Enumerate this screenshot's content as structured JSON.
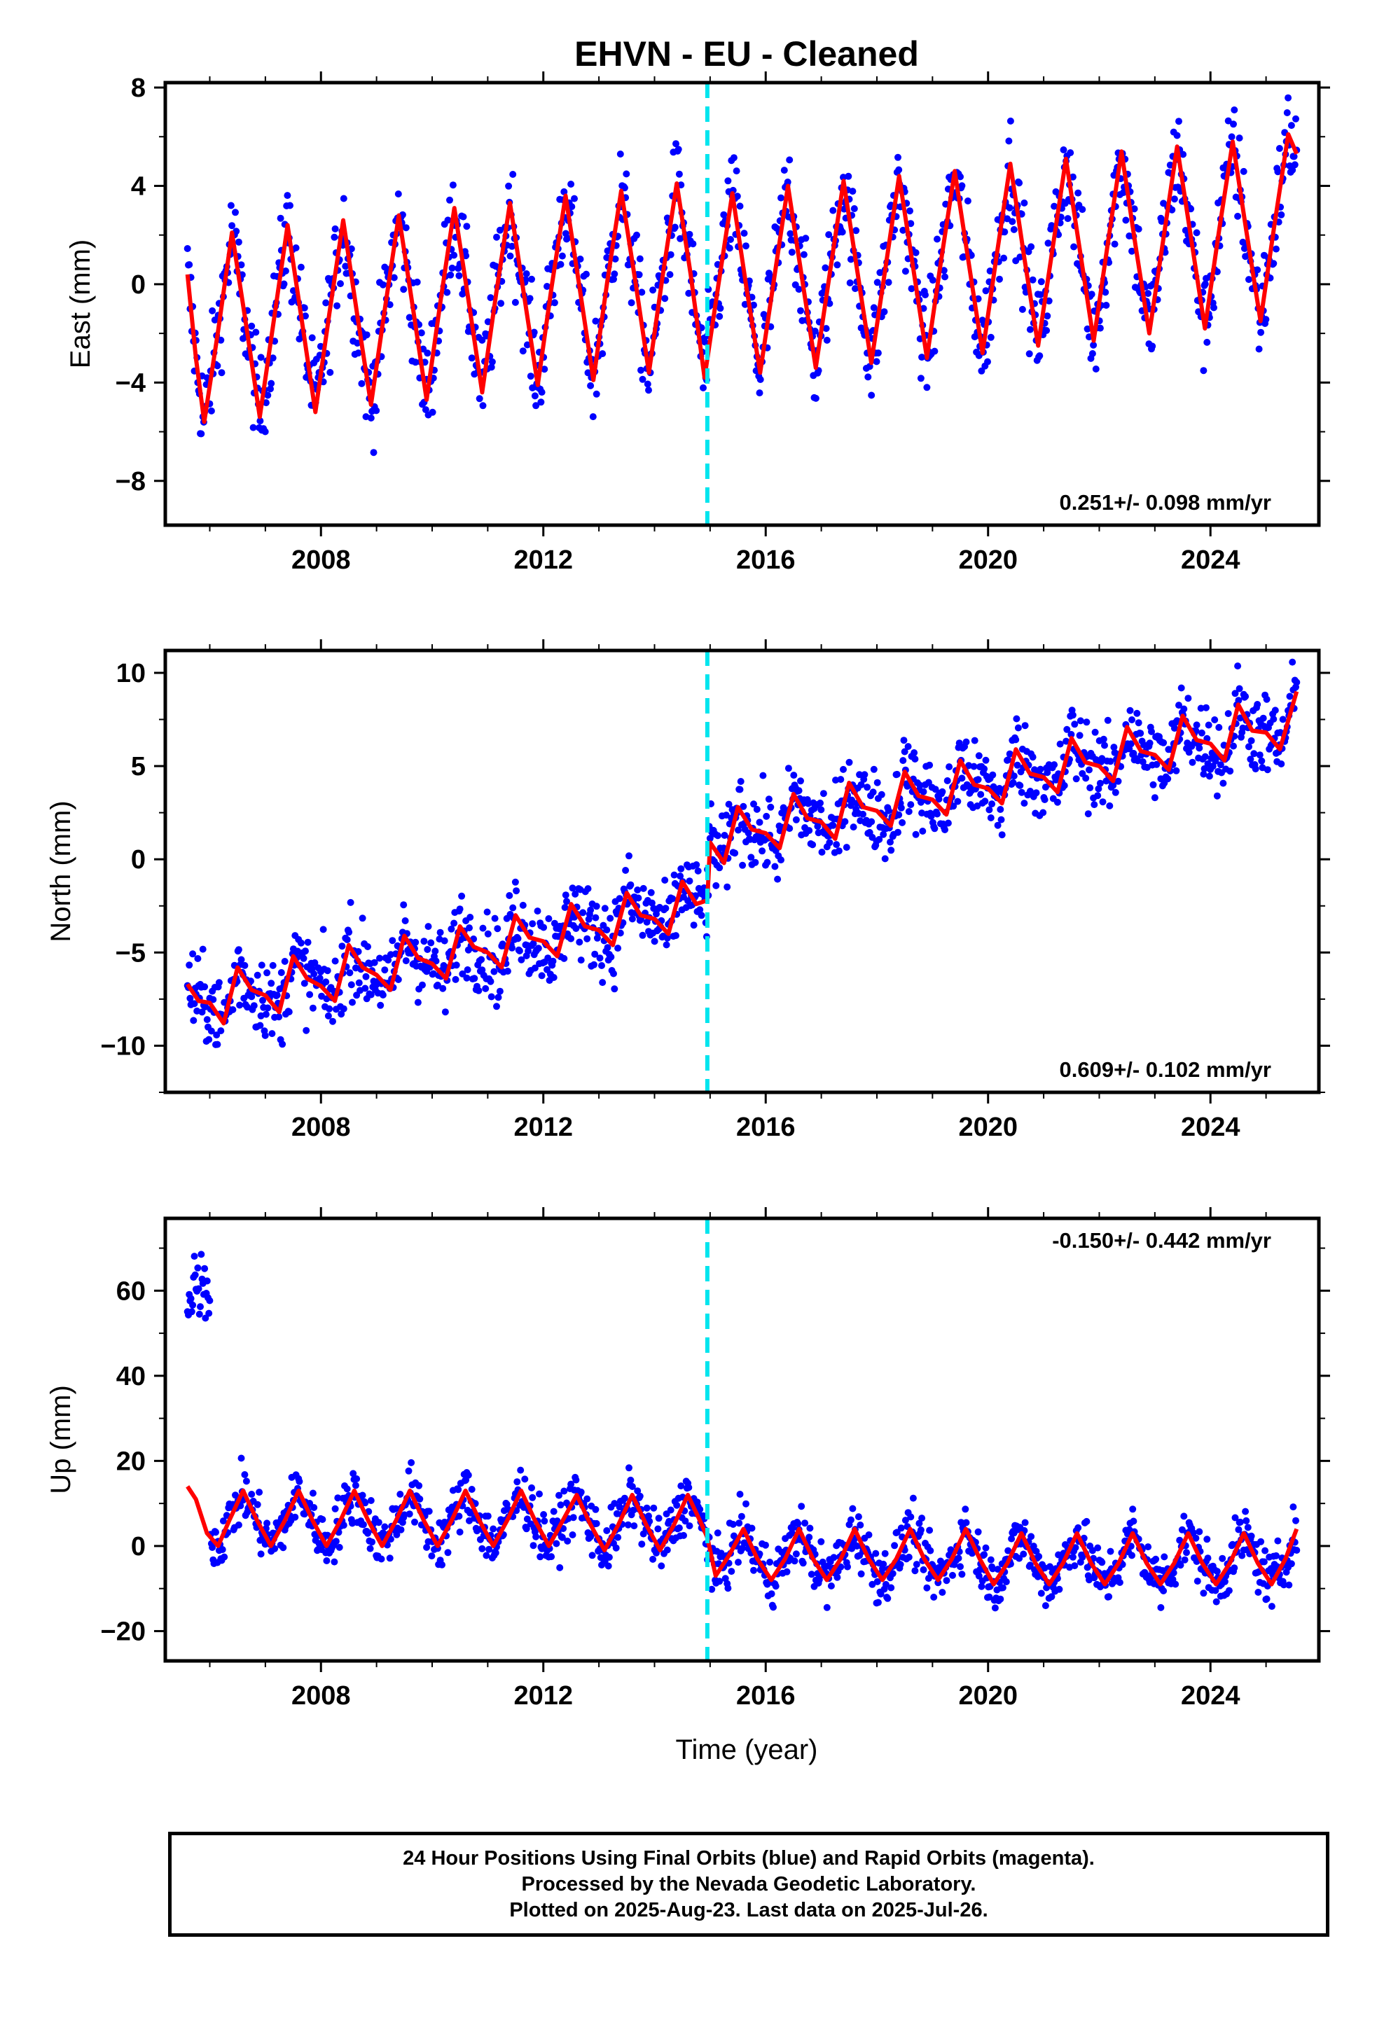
{
  "chart_data": {
    "title": "EHVN  - EU - Cleaned",
    "xlabel": "Time (year)",
    "type": "scatter",
    "x_ticks": [
      2008,
      2012,
      2016,
      2020,
      2024
    ],
    "xlim": [
      2005.2,
      2025.95
    ],
    "break_year": 2014.95,
    "colors": {
      "points": "#0000ff",
      "model": "#ff0000",
      "break": "#00e5ee",
      "frame": "#000000"
    },
    "panels": [
      {
        "ylabel": "East (mm)",
        "ylim": [
          -9.8,
          8.2
        ],
        "y_ticks": [
          8,
          4,
          0,
          -4,
          -8
        ],
        "y_tick_labels": [
          "8",
          "4",
          "0",
          "−4",
          "−8"
        ],
        "rate_label": "0.251+/- 0.098 mm/yr",
        "rate_position": "bottom-right",
        "series": [
          {
            "type": "line",
            "x": [
              2005.6,
              2005.75,
              2005.9,
              2006.15,
              2006.4,
              2006.65,
              2006.9,
              2007.15,
              2007.4,
              2007.65,
              2007.9,
              2008.15,
              2008.4,
              2008.65,
              2008.9,
              2009.15,
              2009.4,
              2009.65,
              2009.9,
              2010.15,
              2010.4,
              2010.65,
              2010.9,
              2011.15,
              2011.4,
              2011.65,
              2011.9,
              2012.15,
              2012.4,
              2012.65,
              2012.9,
              2013.15,
              2013.4,
              2013.65,
              2013.9,
              2014.15,
              2014.4,
              2014.65,
              2014.9,
              2015.15,
              2015.4,
              2015.65,
              2015.9,
              2016.15,
              2016.4,
              2016.65,
              2016.9,
              2017.15,
              2017.4,
              2017.65,
              2017.9,
              2018.15,
              2018.4,
              2018.65,
              2018.9,
              2019.15,
              2019.4,
              2019.65,
              2019.9,
              2020.15,
              2020.4,
              2020.65,
              2020.9,
              2021.15,
              2021.4,
              2021.65,
              2021.9,
              2022.15,
              2022.4,
              2022.65,
              2022.9,
              2023.15,
              2023.4,
              2023.65,
              2023.9,
              2024.15,
              2024.4,
              2024.65,
              2024.9,
              2025.15,
              2025.4,
              2025.55
            ],
            "y": [
              0.4,
              -3.0,
              -5.6,
              -1.9,
              2.1,
              -1.6,
              -5.4,
              -1.5,
              2.4,
              -1.4,
              -5.2,
              -1.2,
              2.6,
              -1.2,
              -4.9,
              -1.0,
              2.8,
              -0.9,
              -4.7,
              -0.7,
              3.1,
              -0.6,
              -4.4,
              -0.4,
              3.3,
              -0.4,
              -4.1,
              -0.1,
              3.6,
              -0.1,
              -3.9,
              0.1,
              3.8,
              0.2,
              -3.6,
              0.4,
              4.1,
              0.4,
              -3.8,
              0.0,
              3.7,
              -0.1,
              -3.6,
              0.2,
              4.0,
              0.3,
              -3.4,
              0.4,
              4.2,
              0.5,
              -3.2,
              0.6,
              4.4,
              0.7,
              -3.0,
              0.9,
              4.6,
              0.9,
              -2.8,
              1.1,
              4.9,
              1.1,
              -2.5,
              1.3,
              5.1,
              1.4,
              -2.3,
              1.6,
              5.4,
              1.6,
              -2.0,
              1.8,
              5.6,
              1.9,
              -1.8,
              2.1,
              5.8,
              2.1,
              -1.5,
              2.4,
              6.1,
              5.3
            ]
          }
        ]
      },
      {
        "ylabel": "North (mm)",
        "ylim": [
          -12.5,
          11.2
        ],
        "y_ticks": [
          10,
          5,
          0,
          -5,
          -10
        ],
        "y_tick_labels": [
          "10",
          "5",
          "0",
          "−5",
          "−10"
        ],
        "rate_label": "0.609+/- 0.102 mm/yr",
        "rate_position": "bottom-right",
        "series": [
          {
            "type": "line",
            "x": [
              2005.6,
              2005.8,
              2006.0,
              2006.25,
              2006.5,
              2006.75,
              2007.0,
              2007.25,
              2007.5,
              2007.75,
              2008.0,
              2008.25,
              2008.5,
              2008.75,
              2009.0,
              2009.25,
              2009.5,
              2009.75,
              2010.0,
              2010.25,
              2010.5,
              2010.75,
              2011.0,
              2011.25,
              2011.5,
              2011.75,
              2012.0,
              2012.25,
              2012.5,
              2012.75,
              2013.0,
              2013.25,
              2013.5,
              2013.75,
              2014.0,
              2014.25,
              2014.5,
              2014.75,
              2014.95,
              2015.0,
              2015.25,
              2015.5,
              2015.75,
              2016.0,
              2016.25,
              2016.5,
              2016.75,
              2017.0,
              2017.25,
              2017.5,
              2017.75,
              2018.0,
              2018.25,
              2018.5,
              2018.75,
              2019.0,
              2019.25,
              2019.5,
              2019.75,
              2020.0,
              2020.25,
              2020.5,
              2020.75,
              2021.0,
              2021.25,
              2021.5,
              2021.75,
              2022.0,
              2022.25,
              2022.5,
              2022.75,
              2023.0,
              2023.25,
              2023.5,
              2023.75,
              2024.0,
              2024.25,
              2024.5,
              2024.75,
              2025.0,
              2025.25,
              2025.55
            ],
            "y": [
              -6.7,
              -7.6,
              -7.7,
              -8.8,
              -5.8,
              -7.0,
              -7.3,
              -8.2,
              -5.2,
              -6.4,
              -6.8,
              -7.6,
              -4.6,
              -5.8,
              -6.2,
              -7.0,
              -4.1,
              -5.3,
              -5.6,
              -6.4,
              -3.6,
              -4.7,
              -5.0,
              -5.8,
              -3.0,
              -4.2,
              -4.4,
              -5.2,
              -2.4,
              -3.6,
              -3.8,
              -4.6,
              -1.8,
              -3.0,
              -3.2,
              -4.0,
              -1.2,
              -2.4,
              -2.2,
              0.9,
              -0.2,
              2.8,
              1.6,
              1.4,
              0.6,
              3.5,
              2.2,
              2.0,
              1.1,
              4.1,
              2.8,
              2.6,
              1.8,
              4.7,
              3.4,
              3.2,
              2.4,
              5.3,
              4.0,
              3.8,
              3.0,
              5.9,
              4.6,
              4.4,
              3.6,
              6.5,
              5.2,
              5.0,
              4.2,
              7.1,
              5.8,
              5.6,
              4.8,
              7.7,
              6.4,
              6.2,
              5.3,
              8.3,
              6.9,
              6.8,
              5.9,
              9.0
            ]
          }
        ]
      },
      {
        "ylabel": "Up (mm)",
        "ylim": [
          -27,
          77
        ],
        "y_ticks": [
          60,
          40,
          20,
          0,
          -20
        ],
        "y_tick_labels": [
          "60",
          "40",
          "20",
          "0",
          "−20"
        ],
        "rate_label": "-0.150+/- 0.442 mm/yr",
        "rate_position": "top-right",
        "series": [
          {
            "type": "line",
            "x": [
              2005.6,
              2005.75,
              2005.95,
              2006.15,
              2006.35,
              2006.6,
              2006.85,
              2007.1,
              2007.35,
              2007.6,
              2007.85,
              2008.1,
              2008.35,
              2008.6,
              2008.85,
              2009.1,
              2009.35,
              2009.6,
              2009.85,
              2010.1,
              2010.35,
              2010.6,
              2010.85,
              2011.1,
              2011.35,
              2011.6,
              2011.85,
              2012.1,
              2012.35,
              2012.6,
              2012.85,
              2013.1,
              2013.35,
              2013.6,
              2013.85,
              2014.1,
              2014.35,
              2014.6,
              2014.85,
              2014.95,
              2015.1,
              2015.35,
              2015.6,
              2015.85,
              2016.1,
              2016.35,
              2016.6,
              2016.85,
              2017.1,
              2017.35,
              2017.6,
              2017.85,
              2018.1,
              2018.35,
              2018.6,
              2018.85,
              2019.1,
              2019.35,
              2019.6,
              2019.85,
              2020.1,
              2020.35,
              2020.6,
              2020.85,
              2021.1,
              2021.35,
              2021.6,
              2021.85,
              2022.1,
              2022.35,
              2022.6,
              2022.85,
              2023.1,
              2023.35,
              2023.6,
              2023.85,
              2024.1,
              2024.35,
              2024.6,
              2024.85,
              2025.1,
              2025.35,
              2025.55
            ],
            "y": [
              14,
              11,
              3,
              0,
              6,
              13,
              6,
              0,
              6,
              13,
              6,
              0,
              6,
              13,
              6,
              0,
              6,
              13,
              6,
              0,
              6,
              13,
              6,
              0,
              6,
              13,
              6,
              0,
              6,
              12,
              5,
              -1,
              5,
              12,
              5,
              -1,
              5,
              12,
              5,
              2,
              -7,
              -2,
              4,
              -3,
              -8,
              -3,
              4,
              -3,
              -8,
              -3,
              4,
              -3,
              -8,
              -3,
              4,
              -3,
              -8,
              -3,
              4,
              -3,
              -9,
              -4,
              3,
              -4,
              -9,
              -4,
              3,
              -4,
              -9,
              -4,
              3,
              -4,
              -9,
              -4,
              3,
              -4,
              -9,
              -4,
              3,
              -4,
              -9,
              -3,
              4
            ]
          }
        ]
      }
    ]
  },
  "footer": {
    "line1": "24 Hour Positions Using Final Orbits (blue) and Rapid Orbits (magenta).",
    "line2": "Processed by the Nevada Geodetic Laboratory.",
    "line3": "Plotted on 2025-Aug-23. Last data on 2025-Jul-26."
  }
}
